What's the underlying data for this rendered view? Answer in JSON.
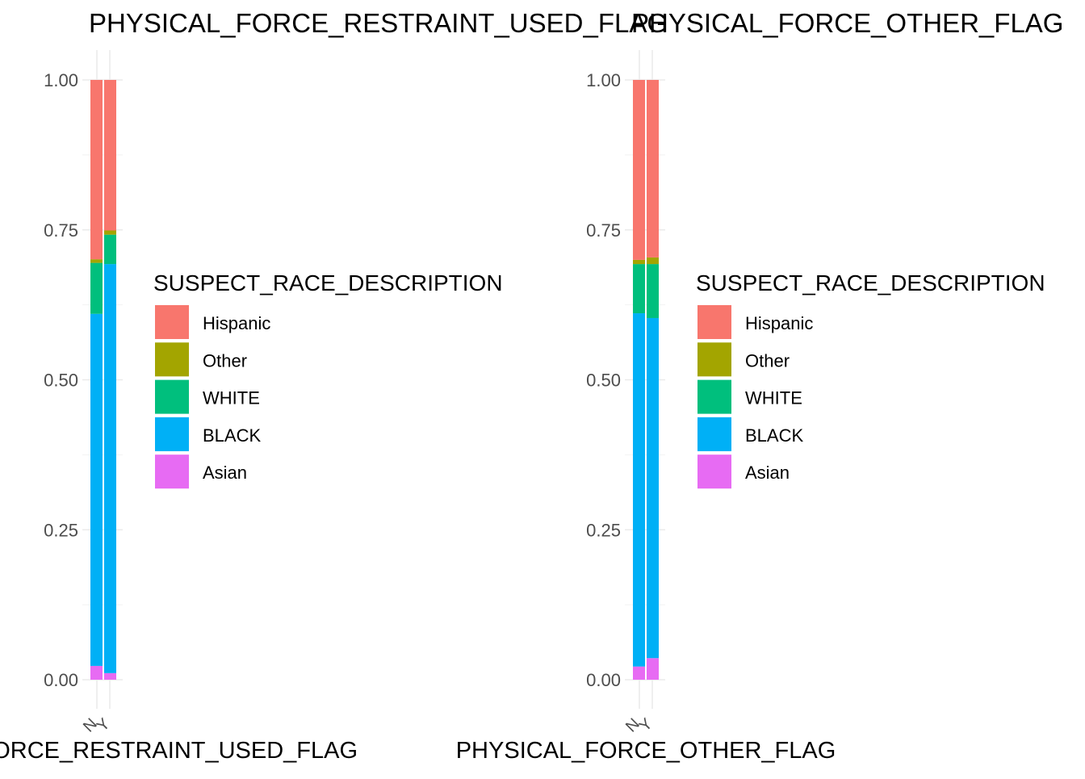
{
  "chart_data": [
    {
      "type": "bar",
      "stacked": true,
      "position": "fill",
      "title": "PHYSICAL_FORCE_RESTRAINT_USED_FLAG",
      "xlabel": "PHYSICAL_FORCE_RESTRAINT_USED_FLAG",
      "ylabel": "",
      "ylim": [
        0,
        1
      ],
      "y_ticks": [
        "0.00",
        "0.25",
        "0.50",
        "0.75",
        "1.00"
      ],
      "categories": [
        "N",
        "Y"
      ],
      "series": [
        {
          "name": "Asian",
          "color": "#E76BF3",
          "values": [
            0.023,
            0.011
          ]
        },
        {
          "name": "BLACK",
          "color": "#00B0F6",
          "values": [
            0.587,
            0.682
          ]
        },
        {
          "name": "WHITE",
          "color": "#00BF7D",
          "values": [
            0.085,
            0.049
          ]
        },
        {
          "name": "Other",
          "color": "#A3A500",
          "values": [
            0.006,
            0.007
          ]
        },
        {
          "name": "Hispanic",
          "color": "#F8766D",
          "values": [
            0.299,
            0.251
          ]
        }
      ],
      "legend": {
        "title": "SUSPECT_RACE_DESCRIPTION",
        "placement": "right",
        "items": [
          "Hispanic",
          "Other",
          "WHITE",
          "BLACK",
          "Asian"
        ]
      },
      "grid": true
    },
    {
      "type": "bar",
      "stacked": true,
      "position": "fill",
      "title": "PHYSICAL_FORCE_OTHER_FLAG",
      "xlabel": "PHYSICAL_FORCE_OTHER_FLAG",
      "ylabel": "",
      "ylim": [
        0,
        1
      ],
      "y_ticks": [
        "0.00",
        "0.25",
        "0.50",
        "0.75",
        "1.00"
      ],
      "categories": [
        "N",
        "Y"
      ],
      "series": [
        {
          "name": "Asian",
          "color": "#E76BF3",
          "values": [
            0.022,
            0.036
          ]
        },
        {
          "name": "BLACK",
          "color": "#00B0F6",
          "values": [
            0.589,
            0.567
          ]
        },
        {
          "name": "WHITE",
          "color": "#00BF7D",
          "values": [
            0.082,
            0.09
          ]
        },
        {
          "name": "Other",
          "color": "#A3A500",
          "values": [
            0.007,
            0.011
          ]
        },
        {
          "name": "Hispanic",
          "color": "#F8766D",
          "values": [
            0.3,
            0.296
          ]
        }
      ],
      "legend": {
        "title": "SUSPECT_RACE_DESCRIPTION",
        "placement": "right",
        "items": [
          "Hispanic",
          "Other",
          "WHITE",
          "BLACK",
          "Asian"
        ]
      },
      "grid": true
    }
  ]
}
